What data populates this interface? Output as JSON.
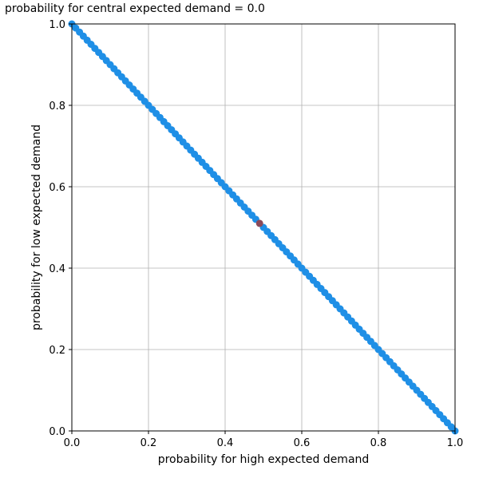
{
  "chart_data": {
    "type": "scatter",
    "title": "probability for central expected demand = 0.0",
    "xlabel": "probability for high expected demand",
    "ylabel": "probability for low expected demand",
    "xlim": [
      0.0,
      1.0
    ],
    "ylim": [
      0.0,
      1.0
    ],
    "grid": true,
    "x_ticks": [
      0.0,
      0.2,
      0.4,
      0.6,
      0.8,
      1.0
    ],
    "y_ticks": [
      0.0,
      0.2,
      0.4,
      0.6,
      0.8,
      1.0
    ],
    "x_tick_labels": [
      "0.0",
      "0.2",
      "0.4",
      "0.6",
      "0.8",
      "1.0"
    ],
    "y_tick_labels": [
      "0.0",
      "0.2",
      "0.4",
      "0.6",
      "0.8",
      "1.0"
    ],
    "series": [
      {
        "color": "#1f8fe6",
        "x": [
          0.0,
          0.01,
          0.02,
          0.03,
          0.04,
          0.05,
          0.06,
          0.07,
          0.08,
          0.09,
          0.1,
          0.11,
          0.12,
          0.13,
          0.14,
          0.15,
          0.16,
          0.17,
          0.18,
          0.19,
          0.2,
          0.21,
          0.22,
          0.23,
          0.24,
          0.25,
          0.26,
          0.27,
          0.28,
          0.29,
          0.3,
          0.31,
          0.32,
          0.33,
          0.34,
          0.35,
          0.36,
          0.37,
          0.38,
          0.39,
          0.4,
          0.41,
          0.42,
          0.43,
          0.44,
          0.45,
          0.46,
          0.47,
          0.48,
          0.5,
          0.51,
          0.52,
          0.53,
          0.54,
          0.55,
          0.56,
          0.57,
          0.58,
          0.59,
          0.6,
          0.61,
          0.62,
          0.63,
          0.64,
          0.65,
          0.66,
          0.67,
          0.68,
          0.69,
          0.7,
          0.71,
          0.72,
          0.73,
          0.74,
          0.75,
          0.76,
          0.77,
          0.78,
          0.79,
          0.8,
          0.81,
          0.82,
          0.83,
          0.84,
          0.85,
          0.86,
          0.87,
          0.88,
          0.89,
          0.9,
          0.91,
          0.92,
          0.93,
          0.94,
          0.95,
          0.96,
          0.97,
          0.98,
          0.99,
          1.0
        ],
        "y": [
          1.0,
          0.99,
          0.98,
          0.97,
          0.96,
          0.95,
          0.94,
          0.93,
          0.92,
          0.91,
          0.9,
          0.89,
          0.88,
          0.87,
          0.86,
          0.85,
          0.84,
          0.83,
          0.82,
          0.81,
          0.8,
          0.79,
          0.78,
          0.77,
          0.76,
          0.75,
          0.74,
          0.73,
          0.72,
          0.71,
          0.7,
          0.69,
          0.68,
          0.67,
          0.66,
          0.65,
          0.64,
          0.63,
          0.62,
          0.61,
          0.6,
          0.59,
          0.58,
          0.57,
          0.56,
          0.55,
          0.54,
          0.53,
          0.52,
          0.5,
          0.49,
          0.48,
          0.47,
          0.46,
          0.45,
          0.44,
          0.43,
          0.42,
          0.41,
          0.4,
          0.39,
          0.38,
          0.37,
          0.36,
          0.35,
          0.34,
          0.33,
          0.32,
          0.31,
          0.3,
          0.29,
          0.28,
          0.27,
          0.26,
          0.25,
          0.24,
          0.23,
          0.22,
          0.21,
          0.2,
          0.19,
          0.18,
          0.17,
          0.16,
          0.15,
          0.14,
          0.13,
          0.12,
          0.11,
          0.1,
          0.09,
          0.08,
          0.07,
          0.06,
          0.05,
          0.04,
          0.03,
          0.02,
          0.01,
          0.0
        ]
      },
      {
        "color": "#8b4a5a",
        "x": [
          0.49
        ],
        "y": [
          0.51
        ]
      }
    ]
  }
}
